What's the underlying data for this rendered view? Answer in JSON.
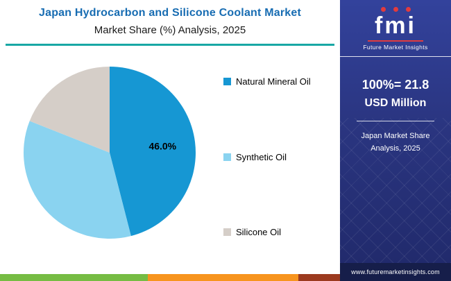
{
  "header": {
    "title_line1": "Japan Hydrocarbon and Silicone Coolant Market",
    "title_line2": "Market Share (%) Analysis, 2025"
  },
  "chart_data": {
    "type": "pie",
    "title": "Japan Hydrocarbon and Silicone Coolant Market — Market Share (%) Analysis, 2025",
    "labels": [
      "Natural Mineral Oil",
      "Synthetic Oil",
      "Silicone Oil"
    ],
    "values": [
      46.0,
      35.0,
      19.0
    ],
    "colors": [
      "#1697D3",
      "#8AD3F0",
      "#D5CEC8"
    ],
    "data_labels": [
      "46.0%",
      "",
      ""
    ],
    "start_angle_deg": 0,
    "direction": "clockwise",
    "legend_position": "right"
  },
  "sidebar": {
    "logo": {
      "text": "fmi",
      "subtext": "Future Market Insights"
    },
    "stat_value": "100%= 21.8",
    "stat_unit": "USD Million",
    "note_line1": "Japan Market Share",
    "note_line2": "Analysis, 2025",
    "footer_url": "www.futuremarketinsights.com"
  },
  "theme": {
    "title_color": "#176CB2",
    "rule_color": "#18A7A5",
    "stripe_colors": [
      "#76BC43",
      "#F7941E",
      "#9C3A1F"
    ],
    "stripe_widths_pct": [
      43.5,
      44.3,
      12.2
    ]
  }
}
